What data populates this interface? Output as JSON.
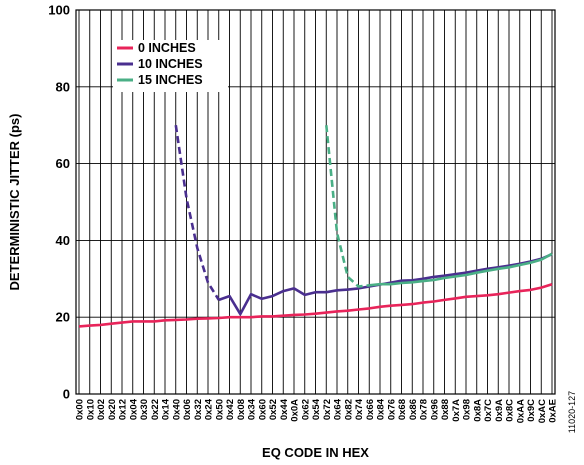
{
  "chart_data": {
    "type": "line",
    "xlabel": "EQ CODE IN HEX",
    "ylabel": "DETERMINISTIC JITTER (ps)",
    "ylim": [
      0,
      100
    ],
    "yticks": [
      0,
      20,
      40,
      60,
      80,
      100
    ],
    "grid": true,
    "legend_position": "top-left",
    "figure_code": "11020-127",
    "categories": [
      "0x00",
      "0x10",
      "0x02",
      "0x20",
      "0x12",
      "0x04",
      "0x30",
      "0x22",
      "0x14",
      "0x40",
      "0x06",
      "0x32",
      "0x24",
      "0x50",
      "0x42",
      "0x08",
      "0x34",
      "0x60",
      "0x52",
      "0x44",
      "0x0A",
      "0x62",
      "0x54",
      "0x72",
      "0x64",
      "0x82",
      "0x74",
      "0x66",
      "0x84",
      "0x76",
      "0x68",
      "0x86",
      "0x78",
      "0x96",
      "0x88",
      "0x7A",
      "0x98",
      "0x8A",
      "0x7C",
      "0x9A",
      "0x8C",
      "0xAA",
      "0x9C",
      "0xAC",
      "0xAE"
    ],
    "series": [
      {
        "name": "0 INCHES",
        "color": "#e8245a",
        "style": "solid",
        "values": [
          17.6,
          17.8,
          18.0,
          18.3,
          18.6,
          18.9,
          18.9,
          18.9,
          19.2,
          19.3,
          19.4,
          19.6,
          19.7,
          19.8,
          20.0,
          20.0,
          20.0,
          20.2,
          20.2,
          20.4,
          20.6,
          20.7,
          20.9,
          21.2,
          21.5,
          21.7,
          22.0,
          22.3,
          22.7,
          23.0,
          23.2,
          23.4,
          23.8,
          24.1,
          24.5,
          24.9,
          25.3,
          25.5,
          25.7,
          26.0,
          26.4,
          26.8,
          27.1,
          27.7,
          28.6
        ]
      },
      {
        "name": "10 INCHES",
        "color": "#4a2f8f",
        "dashed_until_index": 13,
        "values": [
          null,
          null,
          null,
          null,
          null,
          null,
          null,
          null,
          null,
          70,
          51,
          38,
          29,
          24.5,
          25.5,
          20.8,
          26.0,
          24.8,
          25.5,
          26.8,
          27.5,
          25.8,
          26.5,
          26.5,
          27.0,
          27.2,
          27.5,
          28.0,
          28.5,
          29.0,
          29.5,
          29.6,
          30.0,
          30.5,
          30.8,
          31.2,
          31.6,
          32.1,
          32.6,
          33.0,
          33.4,
          33.9,
          34.5,
          35.2,
          36.4
        ]
      },
      {
        "name": "15 INCHES",
        "color": "#4aaf86",
        "dashed_until_index": 27,
        "values": [
          null,
          null,
          null,
          null,
          null,
          null,
          null,
          null,
          null,
          null,
          null,
          null,
          null,
          null,
          null,
          null,
          null,
          null,
          null,
          null,
          null,
          null,
          null,
          70,
          42,
          30.5,
          28.0,
          28.3,
          28.6,
          28.6,
          28.9,
          29.1,
          29.4,
          29.7,
          30.2,
          30.6,
          31.0,
          31.6,
          32.1,
          32.6,
          33.0,
          33.6,
          34.2,
          35.0,
          36.5
        ]
      }
    ]
  }
}
